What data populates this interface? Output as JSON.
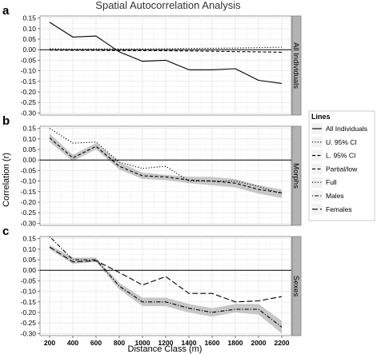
{
  "title": "Spatial Autocorrelation Analysis",
  "ylabel": "Correlation (r)",
  "xlabel": "Distance Class (m)",
  "legend": {
    "title": "Lines",
    "items": [
      {
        "label": "All Individuals",
        "dash": "solid"
      },
      {
        "label": "U. 95% CI",
        "dash": "dotted"
      },
      {
        "label": "L. 95% CI",
        "dash": "dashed"
      },
      {
        "label": "Partial/low",
        "dash": "dashed"
      },
      {
        "label": "Full",
        "dash": "dotted"
      },
      {
        "label": "Males",
        "dash": "dotdash"
      },
      {
        "label": "Females",
        "dash": "longdash"
      }
    ]
  },
  "colors": {
    "panel_bg": "#ffffff",
    "grid": "#e6e6e6",
    "strip_bg": "#b3b3b3",
    "ribbon": "#bdbdbd",
    "line": "#000000"
  },
  "chart_data": {
    "type": "line",
    "x": [
      200,
      400,
      600,
      800,
      1000,
      1200,
      1400,
      1600,
      1800,
      2000,
      2200
    ],
    "xticks": [
      200,
      400,
      600,
      800,
      1000,
      1200,
      1400,
      1600,
      1800,
      2000,
      2200
    ],
    "xtick_labels": [
      "200",
      "400",
      "600",
      "800",
      "1000",
      "1200",
      "1400",
      "1600",
      "1800",
      "2000",
      "2200"
    ],
    "xlim": [
      200,
      2200
    ],
    "ylim": [
      -0.31,
      0.16
    ],
    "yticks": [
      0.15,
      0.1,
      0.05,
      0.0,
      -0.05,
      -0.1,
      -0.15,
      -0.2,
      -0.25,
      -0.3
    ],
    "ytick_labels": [
      "0.15",
      "0.10",
      "0.05",
      "0.00",
      "-0.05",
      "-0.10",
      "-0.15",
      "-0.20",
      "-0.25",
      "-0.30"
    ],
    "grid": true,
    "legend_position": "right",
    "panels": [
      {
        "label": "a",
        "strip": "All Individuals",
        "series": [
          {
            "name": "All Individuals",
            "dash": "solid",
            "values": [
              0.13,
              0.06,
              0.065,
              -0.01,
              -0.055,
              -0.05,
              -0.095,
              -0.095,
              -0.09,
              -0.145,
              -0.16
            ]
          },
          {
            "name": "U. 95% CI",
            "dash": "dotted",
            "values": [
              0.005,
              0.003,
              0.004,
              0.004,
              0.004,
              0.005,
              0.006,
              0.007,
              0.008,
              0.01,
              0.012
            ]
          },
          {
            "name": "L. 95% CI",
            "dash": "dashed",
            "values": [
              -0.002,
              -0.003,
              -0.003,
              -0.004,
              -0.004,
              -0.005,
              -0.006,
              -0.007,
              -0.009,
              -0.01,
              -0.012
            ]
          }
        ]
      },
      {
        "label": "b",
        "strip": "Morphs",
        "ribbon": {
          "upper": [
            0.125,
            0.025,
            0.08,
            -0.01,
            -0.06,
            -0.07,
            -0.08,
            -0.08,
            -0.09,
            -0.12,
            -0.14
          ],
          "lower": [
            0.085,
            -0.005,
            0.05,
            -0.045,
            -0.09,
            -0.095,
            -0.11,
            -0.12,
            -0.13,
            -0.16,
            -0.18
          ]
        },
        "series": [
          {
            "name": "Full",
            "dash": "dotted",
            "values": [
              0.15,
              0.08,
              0.085,
              -0.01,
              -0.04,
              -0.03,
              -0.1,
              -0.1,
              -0.1,
              -0.125,
              -0.16
            ]
          },
          {
            "name": "Partial/low",
            "dash": "dashed",
            "values": [
              0.105,
              0.01,
              0.065,
              -0.03,
              -0.075,
              -0.08,
              -0.095,
              -0.1,
              -0.11,
              -0.14,
              -0.155
            ]
          }
        ]
      },
      {
        "label": "c",
        "strip": "Sexes",
        "ribbon": {
          "upper": [
            0.12,
            0.06,
            0.06,
            -0.06,
            -0.13,
            -0.13,
            -0.16,
            -0.18,
            -0.16,
            -0.16,
            -0.24
          ],
          "lower": [
            0.1,
            0.03,
            0.04,
            -0.09,
            -0.17,
            -0.17,
            -0.2,
            -0.22,
            -0.2,
            -0.21,
            -0.3
          ]
        },
        "series": [
          {
            "name": "Males",
            "dash": "dotdash",
            "values": [
              0.16,
              0.05,
              0.05,
              -0.075,
              -0.15,
              -0.15,
              -0.18,
              -0.2,
              -0.185,
              -0.185,
              -0.27
            ]
          },
          {
            "name": "Females",
            "dash": "longdash",
            "values": [
              0.11,
              0.04,
              0.045,
              -0.01,
              -0.07,
              -0.03,
              -0.11,
              -0.11,
              -0.15,
              -0.145,
              -0.125
            ]
          }
        ]
      }
    ]
  }
}
